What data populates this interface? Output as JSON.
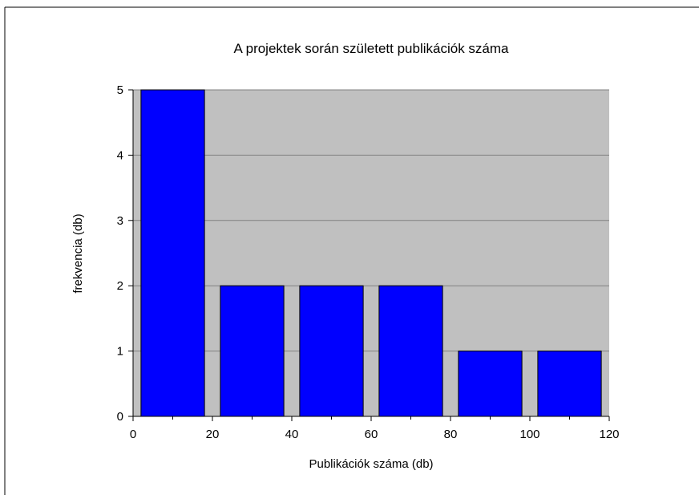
{
  "chart_data": {
    "type": "bar",
    "title": "A projektek során született publikációk száma",
    "xlabel": "Publikációk száma (db)",
    "ylabel": "frekvencia (db)",
    "bins": [
      {
        "x_start": 0,
        "x_end": 20,
        "value": 5
      },
      {
        "x_start": 20,
        "x_end": 40,
        "value": 2
      },
      {
        "x_start": 40,
        "x_end": 60,
        "value": 2
      },
      {
        "x_start": 60,
        "x_end": 80,
        "value": 2
      },
      {
        "x_start": 80,
        "x_end": 100,
        "value": 1
      },
      {
        "x_start": 100,
        "x_end": 120,
        "value": 1
      }
    ],
    "xlim": [
      0,
      120
    ],
    "ylim": [
      0,
      5
    ],
    "x_ticks": [
      0,
      20,
      40,
      60,
      80,
      100,
      120
    ],
    "x_tick_labels": [
      "0",
      "20",
      "40",
      "60",
      "80",
      "100",
      "120"
    ],
    "x_minor_ticks": [
      10,
      30,
      50,
      70,
      90,
      110
    ],
    "y_ticks": [
      0,
      1,
      2,
      3,
      4,
      5
    ],
    "y_tick_labels": [
      "0",
      "1",
      "2",
      "3",
      "4",
      "5"
    ],
    "grid": true,
    "legend": "none",
    "colors": {
      "bar_fill": "#0000ff",
      "bar_stroke": "#000000",
      "plot_background": "#c0c0c0",
      "gridline": "#808080",
      "axis": "#000000"
    }
  }
}
